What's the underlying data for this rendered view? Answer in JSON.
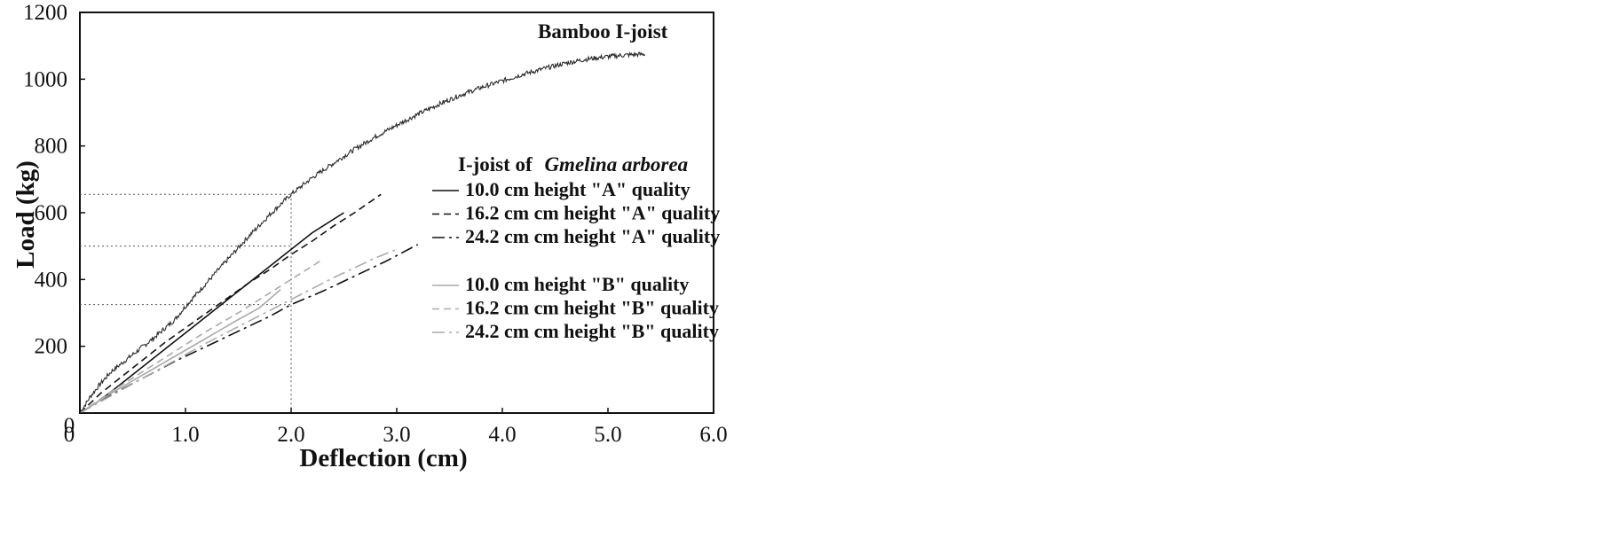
{
  "chart_data": {
    "type": "line",
    "title": "",
    "xlabel": "Deflection (cm)",
    "ylabel": "Load (kg)",
    "xlim": [
      0,
      6
    ],
    "ylim": [
      0,
      1200
    ],
    "x_tick_labels": [
      "0",
      "1.0",
      "2.0",
      "3.0",
      "4.0",
      "5.0",
      "6.0"
    ],
    "y_tick_labels": [
      "0",
      "200",
      "400",
      "600",
      "800",
      "1000",
      "1200"
    ],
    "x_ticks": [
      0,
      1,
      2,
      3,
      4,
      5,
      6
    ],
    "y_ticks": [
      0,
      200,
      400,
      600,
      800,
      1000,
      1200
    ],
    "grid": false,
    "legend": {
      "title_prefix": "I-joist of",
      "title_italic": "Gmelina arborea",
      "placement": "right"
    },
    "annotations": {
      "bamboo_label": "Bamboo I-joist"
    },
    "reference_lines": {
      "x": 2.0,
      "y": [
        655,
        500,
        325
      ],
      "style": "dotted"
    },
    "series": [
      {
        "name": "Bamboo I-joist",
        "color": "#2a2a2a",
        "dash": "",
        "noisy": true,
        "in_legend": false,
        "x": [
          0,
          0.1,
          0.2,
          0.3,
          0.5,
          0.7,
          0.9,
          1.0,
          1.2,
          1.4,
          1.6,
          1.8,
          2.0,
          2.2,
          2.4,
          2.6,
          2.8,
          3.0,
          3.2,
          3.4,
          3.6,
          3.8,
          4.0,
          4.2,
          4.4,
          4.6,
          4.8,
          5.0,
          5.2,
          5.35
        ],
        "y": [
          0,
          50,
          90,
          125,
          175,
          225,
          280,
          320,
          390,
          460,
          530,
          595,
          655,
          705,
          748,
          790,
          828,
          862,
          895,
          925,
          952,
          975,
          995,
          1015,
          1032,
          1048,
          1060,
          1068,
          1073,
          1075
        ]
      },
      {
        "name": "10.0 cm height \"A\" quality",
        "color": "#111111",
        "dash": "",
        "noisy": false,
        "in_legend": true,
        "x": [
          0,
          0.2,
          0.4,
          0.6,
          0.8,
          1.0,
          1.2,
          1.4,
          1.6,
          1.8,
          2.0,
          2.2,
          2.4,
          2.5
        ],
        "y": [
          0,
          40,
          90,
          140,
          190,
          240,
          290,
          340,
          390,
          440,
          490,
          540,
          580,
          600
        ]
      },
      {
        "name": "16.2 cm cm height \"A\" quality",
        "color": "#111111",
        "dash": "8,5",
        "noisy": false,
        "in_legend": true,
        "x": [
          0,
          0.2,
          0.4,
          0.6,
          0.8,
          1.0,
          1.2,
          1.4,
          1.6,
          1.8,
          2.0,
          2.2,
          2.4,
          2.6,
          2.85
        ],
        "y": [
          0,
          60,
          110,
          160,
          210,
          255,
          300,
          345,
          390,
          430,
          475,
          515,
          560,
          600,
          655
        ]
      },
      {
        "name": "24.2 cm cm height \"A\" quality",
        "color": "#111111",
        "dash": "14,5,3,5",
        "noisy": false,
        "in_legend": true,
        "x": [
          0,
          0.3,
          0.6,
          0.9,
          1.2,
          1.5,
          1.8,
          2.0,
          2.3,
          2.6,
          2.9,
          3.2
        ],
        "y": [
          0,
          55,
          105,
          155,
          200,
          245,
          290,
          325,
          365,
          410,
          455,
          505
        ]
      },
      {
        "name": "10.0 cm height \"B\" quality",
        "color": "#aaaaaa",
        "dash": "",
        "noisy": false,
        "in_legend": true,
        "x": [
          0,
          0.3,
          0.6,
          0.9,
          1.2,
          1.5,
          1.7,
          1.9
        ],
        "y": [
          0,
          60,
          115,
          170,
          225,
          280,
          315,
          370
        ]
      },
      {
        "name": "16.2 cm cm height \"B\" quality",
        "color": "#aaaaaa",
        "dash": "8,5",
        "noisy": false,
        "in_legend": true,
        "x": [
          0,
          0.3,
          0.6,
          0.9,
          1.2,
          1.5,
          1.8,
          2.1,
          2.3
        ],
        "y": [
          0,
          65,
          125,
          185,
          245,
          300,
          360,
          420,
          460
        ]
      },
      {
        "name": "24.2 cm cm height \"B\" quality",
        "color": "#aaaaaa",
        "dash": "14,5,3,5",
        "noisy": false,
        "in_legend": true,
        "x": [
          0,
          0.4,
          0.8,
          1.2,
          1.6,
          2.0,
          2.4,
          2.8,
          3.0
        ],
        "y": [
          0,
          70,
          140,
          210,
          275,
          340,
          405,
          465,
          490
        ]
      }
    ]
  }
}
